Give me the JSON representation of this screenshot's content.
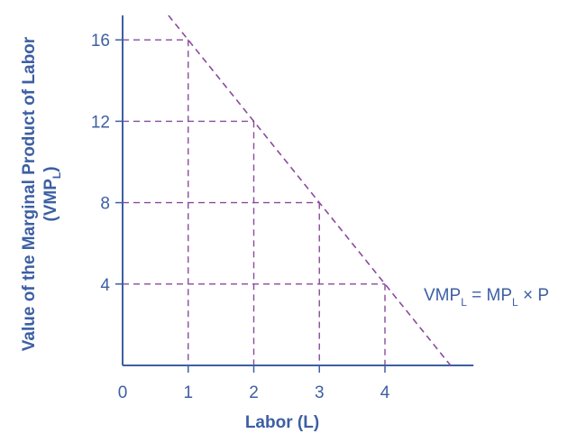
{
  "chart_data": {
    "type": "line",
    "xlabel": "Labor (L)",
    "ylabel": {
      "line1": "Value of the Marginal Product of Labor",
      "line2_main": "(VMP",
      "line2_sub": "L",
      "line2_end": ")"
    },
    "x_ticks": [
      0,
      1,
      2,
      3,
      4
    ],
    "y_ticks": [
      4,
      8,
      12,
      16
    ],
    "xlim": [
      0,
      5.35
    ],
    "ylim": [
      0,
      17.2
    ],
    "grid": false,
    "series": [
      {
        "x": [
          0.7,
          5
        ],
        "y": [
          17.2,
          0
        ],
        "style": "dashed"
      }
    ],
    "points": [
      {
        "x": 1,
        "y": 16
      },
      {
        "x": 2,
        "y": 12
      },
      {
        "x": 3,
        "y": 8
      },
      {
        "x": 4,
        "y": 4
      }
    ],
    "annotation": {
      "p1": "VMP",
      "s1": "L",
      "p2": " = MP",
      "s2": "L",
      "p3": " × P"
    },
    "colors": {
      "axis": "#3d5fa3",
      "line": "#8a4b9c"
    }
  }
}
